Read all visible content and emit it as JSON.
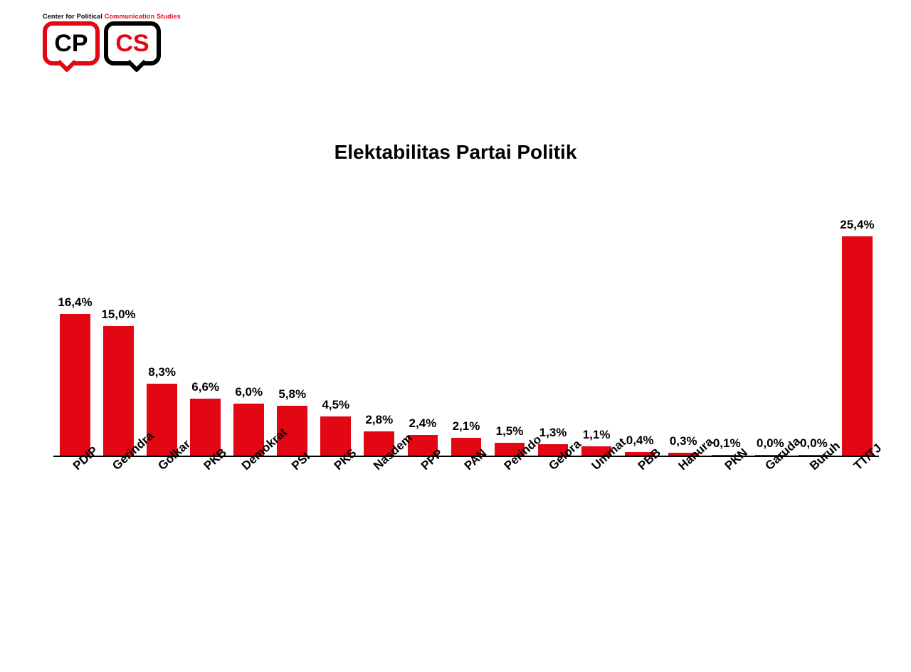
{
  "logo": {
    "caption_black": "Center for Political ",
    "caption_red": "Communication Studies",
    "left_text": "CP",
    "right_text": "CS"
  },
  "chart": {
    "type": "bar",
    "title": "Elektabilitas Partai Politik",
    "title_fontsize": 28,
    "title_fontweight": 700,
    "bar_color": "#e30613",
    "axis_color": "#000000",
    "background_color": "#ffffff",
    "value_label_fontsize": 17,
    "xlabel_fontsize": 17,
    "xlabel_rotation_deg": -42,
    "ylim_max": 28,
    "bar_width_ratio": 0.7,
    "categories": [
      "PDIP",
      "Gerindra",
      "Golkar",
      "PKB",
      "Demokrat",
      "PSI",
      "PKS",
      "Nasdem",
      "PPP",
      "PAN",
      "Perindo",
      "Gelora",
      "Ummat",
      "PBB",
      "Hanura",
      "PKN",
      "Garuda",
      "Buruh",
      "TT/TJ"
    ],
    "values": [
      16.4,
      15.0,
      8.3,
      6.6,
      6.0,
      5.8,
      4.5,
      2.8,
      2.4,
      2.1,
      1.5,
      1.3,
      1.1,
      0.4,
      0.3,
      0.1,
      0.0,
      0.0,
      25.4
    ],
    "value_labels": [
      "16,4%",
      "15,0%",
      "8,3%",
      "6,6%",
      "6,0%",
      "5,8%",
      "4,5%",
      "2,8%",
      "2,4%",
      "2,1%",
      "1,5%",
      "1,3%",
      "1,1%",
      "0,4%",
      "0,3%",
      "0,1%",
      "0,0%",
      "0,0%",
      "25,4%"
    ]
  }
}
